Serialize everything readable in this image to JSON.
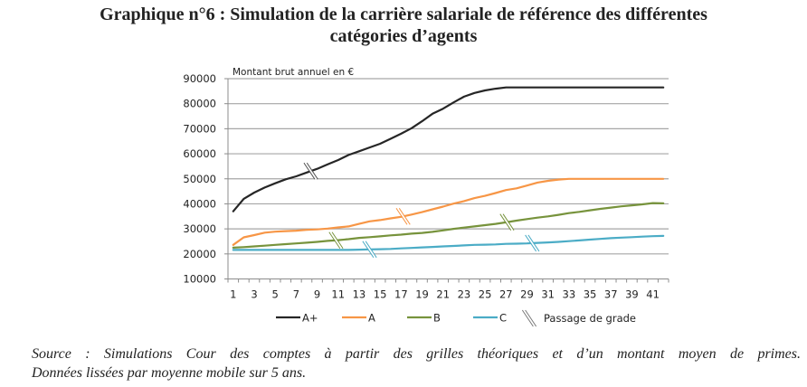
{
  "title": {
    "line1": "Graphique n°6 : Simulation de la carrière salariale de référence des différentes",
    "line2": "catégories d’agents"
  },
  "source": {
    "line1": "Source : Simulations Cour des comptes à partir des grilles théoriques et d’un montant moyen de primes.",
    "line2": "Données lissées par moyenne mobile sur 5 ans."
  },
  "chart_data": {
    "type": "line",
    "title": "Graphique n°6 : Simulation de la carrière salariale de référence des différentes catégories d’agents",
    "ylabel": "Montant brut annuel en €",
    "xlabel": "",
    "ylim": [
      10000,
      90000
    ],
    "yticks": [
      10000,
      20000,
      30000,
      40000,
      50000,
      60000,
      70000,
      80000,
      90000
    ],
    "x": [
      1,
      2,
      3,
      4,
      5,
      6,
      7,
      8,
      9,
      10,
      11,
      12,
      13,
      14,
      15,
      16,
      17,
      18,
      19,
      20,
      21,
      22,
      23,
      24,
      25,
      26,
      27,
      28,
      29,
      30,
      31,
      32,
      33,
      34,
      35,
      36,
      37,
      38,
      39,
      40,
      41,
      42
    ],
    "xtick_labels": [
      "1",
      "3",
      "5",
      "7",
      "9",
      "11",
      "13",
      "15",
      "17",
      "19",
      "21",
      "23",
      "25",
      "27",
      "29",
      "31",
      "33",
      "35",
      "37",
      "39",
      "41"
    ],
    "grid": "horizontal",
    "legend_position": "bottom",
    "series": [
      {
        "name": "A+",
        "color": "#262626",
        "values": [
          37000,
          42000,
          44500,
          46500,
          48200,
          49800,
          51000,
          52500,
          54000,
          55800,
          57500,
          59500,
          61000,
          62500,
          64000,
          66000,
          68000,
          70200,
          73000,
          76000,
          78000,
          80500,
          82800,
          84300,
          85300,
          86000,
          86500,
          86500,
          86500,
          86500,
          86500,
          86500,
          86500,
          86500,
          86500,
          86500,
          86500,
          86500,
          86500,
          86500,
          86500,
          86500
        ]
      },
      {
        "name": "A",
        "color": "#f79646",
        "values": [
          23600,
          26600,
          27500,
          28500,
          28900,
          29100,
          29300,
          29600,
          29800,
          30100,
          30600,
          31000,
          32000,
          33000,
          33500,
          34200,
          34800,
          35700,
          36700,
          37800,
          38900,
          40100,
          41100,
          42300,
          43200,
          44300,
          45500,
          46200,
          47300,
          48500,
          49200,
          49700,
          50000,
          50000,
          50000,
          50000,
          50000,
          50000,
          50000,
          50000,
          50000,
          50000
        ]
      },
      {
        "name": "B",
        "color": "#77933c",
        "values": [
          22500,
          22700,
          23000,
          23300,
          23600,
          23900,
          24200,
          24500,
          24800,
          25200,
          25500,
          25900,
          26400,
          26700,
          27000,
          27400,
          27700,
          28100,
          28400,
          28800,
          29400,
          30000,
          30500,
          31000,
          31500,
          32000,
          32600,
          33300,
          33900,
          34500,
          35000,
          35600,
          36300,
          36800,
          37400,
          38000,
          38500,
          39000,
          39400,
          39800,
          40300,
          40200
        ]
      },
      {
        "name": "C",
        "color": "#4bacc6",
        "values": [
          21600,
          21600,
          21600,
          21600,
          21600,
          21600,
          21600,
          21600,
          21600,
          21600,
          21600,
          21600,
          21700,
          21800,
          21900,
          22000,
          22200,
          22400,
          22600,
          22800,
          23000,
          23200,
          23400,
          23600,
          23700,
          23800,
          24000,
          24100,
          24200,
          24400,
          24600,
          24800,
          25100,
          25400,
          25700,
          26000,
          26300,
          26500,
          26700,
          26900,
          27100,
          27200
        ]
      }
    ],
    "grade_passages": [
      {
        "series": "A+",
        "x": 8.4
      },
      {
        "series": "A",
        "x": 17.2
      },
      {
        "series": "B",
        "x": 10.8
      },
      {
        "series": "B",
        "x": 27.1
      },
      {
        "series": "C",
        "x": 14.0
      },
      {
        "series": "C",
        "x": 29.5
      }
    ],
    "legend": [
      "A+",
      "A",
      "B",
      "C",
      "Passage de grade"
    ]
  }
}
